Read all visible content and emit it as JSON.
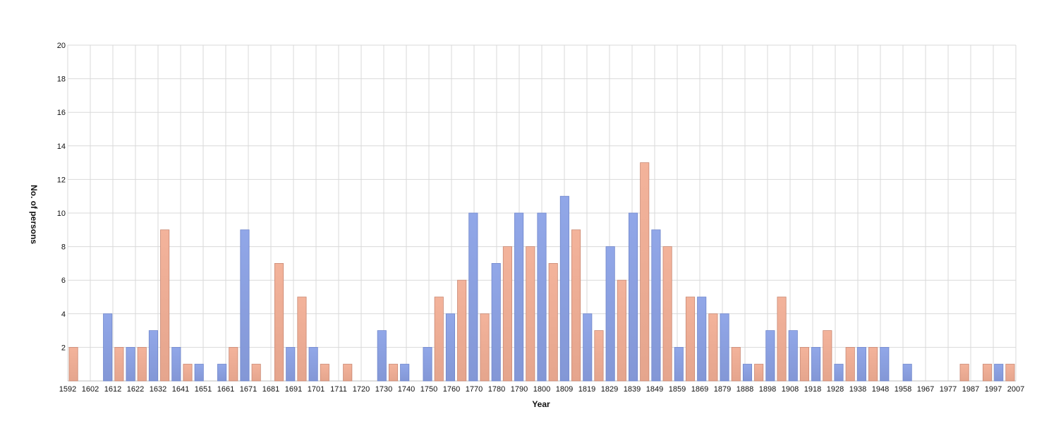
{
  "chart_data": {
    "type": "bar",
    "xlabel": "Year",
    "ylabel": "No. of persons",
    "ylim": [
      0,
      20
    ],
    "y_ticks": [
      2,
      4,
      6,
      8,
      10,
      12,
      14,
      16,
      18,
      20
    ],
    "x_tick_labels": [
      "1592",
      "1602",
      "1612",
      "1622",
      "1632",
      "1641",
      "1651",
      "1661",
      "1671",
      "1681",
      "1691",
      "1701",
      "1711",
      "1720",
      "1730",
      "1740",
      "1750",
      "1760",
      "1770",
      "1780",
      "1790",
      "1800",
      "1809",
      "1819",
      "1829",
      "1839",
      "1849",
      "1859",
      "1869",
      "1879",
      "1888",
      "1898",
      "1908",
      "1918",
      "1928",
      "1938",
      "1948",
      "1958",
      "1967",
      "1977",
      "1987",
      "1997",
      "2007"
    ],
    "grid": true,
    "legend": "none",
    "colors": {
      "blue": "#91a7e8",
      "orange": "#f3b39b",
      "blue_border": "#6f86cc",
      "orange_border": "#c98873"
    },
    "values": [
      2,
      0,
      0,
      4,
      2,
      2,
      2,
      3,
      9,
      2,
      1,
      1,
      0,
      1,
      2,
      9,
      1,
      0,
      7,
      2,
      5,
      2,
      1,
      0,
      1,
      0,
      0,
      3,
      1,
      1,
      0,
      2,
      5,
      4,
      6,
      10,
      4,
      7,
      8,
      10,
      8,
      10,
      7,
      11,
      9,
      4,
      3,
      8,
      6,
      10,
      13,
      9,
      8,
      2,
      5,
      5,
      4,
      4,
      2,
      1,
      1,
      3,
      5,
      3,
      2,
      2,
      3,
      1,
      2,
      2,
      2,
      2,
      0,
      1,
      0,
      0,
      0,
      0,
      1,
      0,
      1,
      1,
      1
    ],
    "bar_colors": [
      "orange",
      "blue",
      "orange",
      "blue",
      "orange",
      "blue",
      "orange",
      "blue",
      "orange",
      "blue",
      "orange",
      "blue",
      "orange",
      "blue",
      "orange",
      "blue",
      "orange",
      "blue",
      "orange",
      "blue",
      "orange",
      "blue",
      "orange",
      "blue",
      "orange",
      "blue",
      "orange",
      "blue",
      "orange",
      "blue",
      "orange",
      "blue",
      "orange",
      "blue",
      "orange",
      "blue",
      "orange",
      "blue",
      "orange",
      "blue",
      "orange",
      "blue",
      "orange",
      "blue",
      "orange",
      "blue",
      "orange",
      "blue",
      "orange",
      "blue",
      "orange",
      "blue",
      "orange",
      "blue",
      "orange",
      "blue",
      "orange",
      "blue",
      "orange",
      "blue",
      "orange",
      "blue",
      "orange",
      "blue",
      "orange",
      "blue",
      "orange",
      "blue",
      "orange",
      "blue",
      "orange",
      "blue",
      "orange",
      "blue",
      "orange",
      "blue",
      "orange",
      "blue",
      "orange",
      "blue",
      "orange",
      "blue",
      "orange"
    ]
  }
}
